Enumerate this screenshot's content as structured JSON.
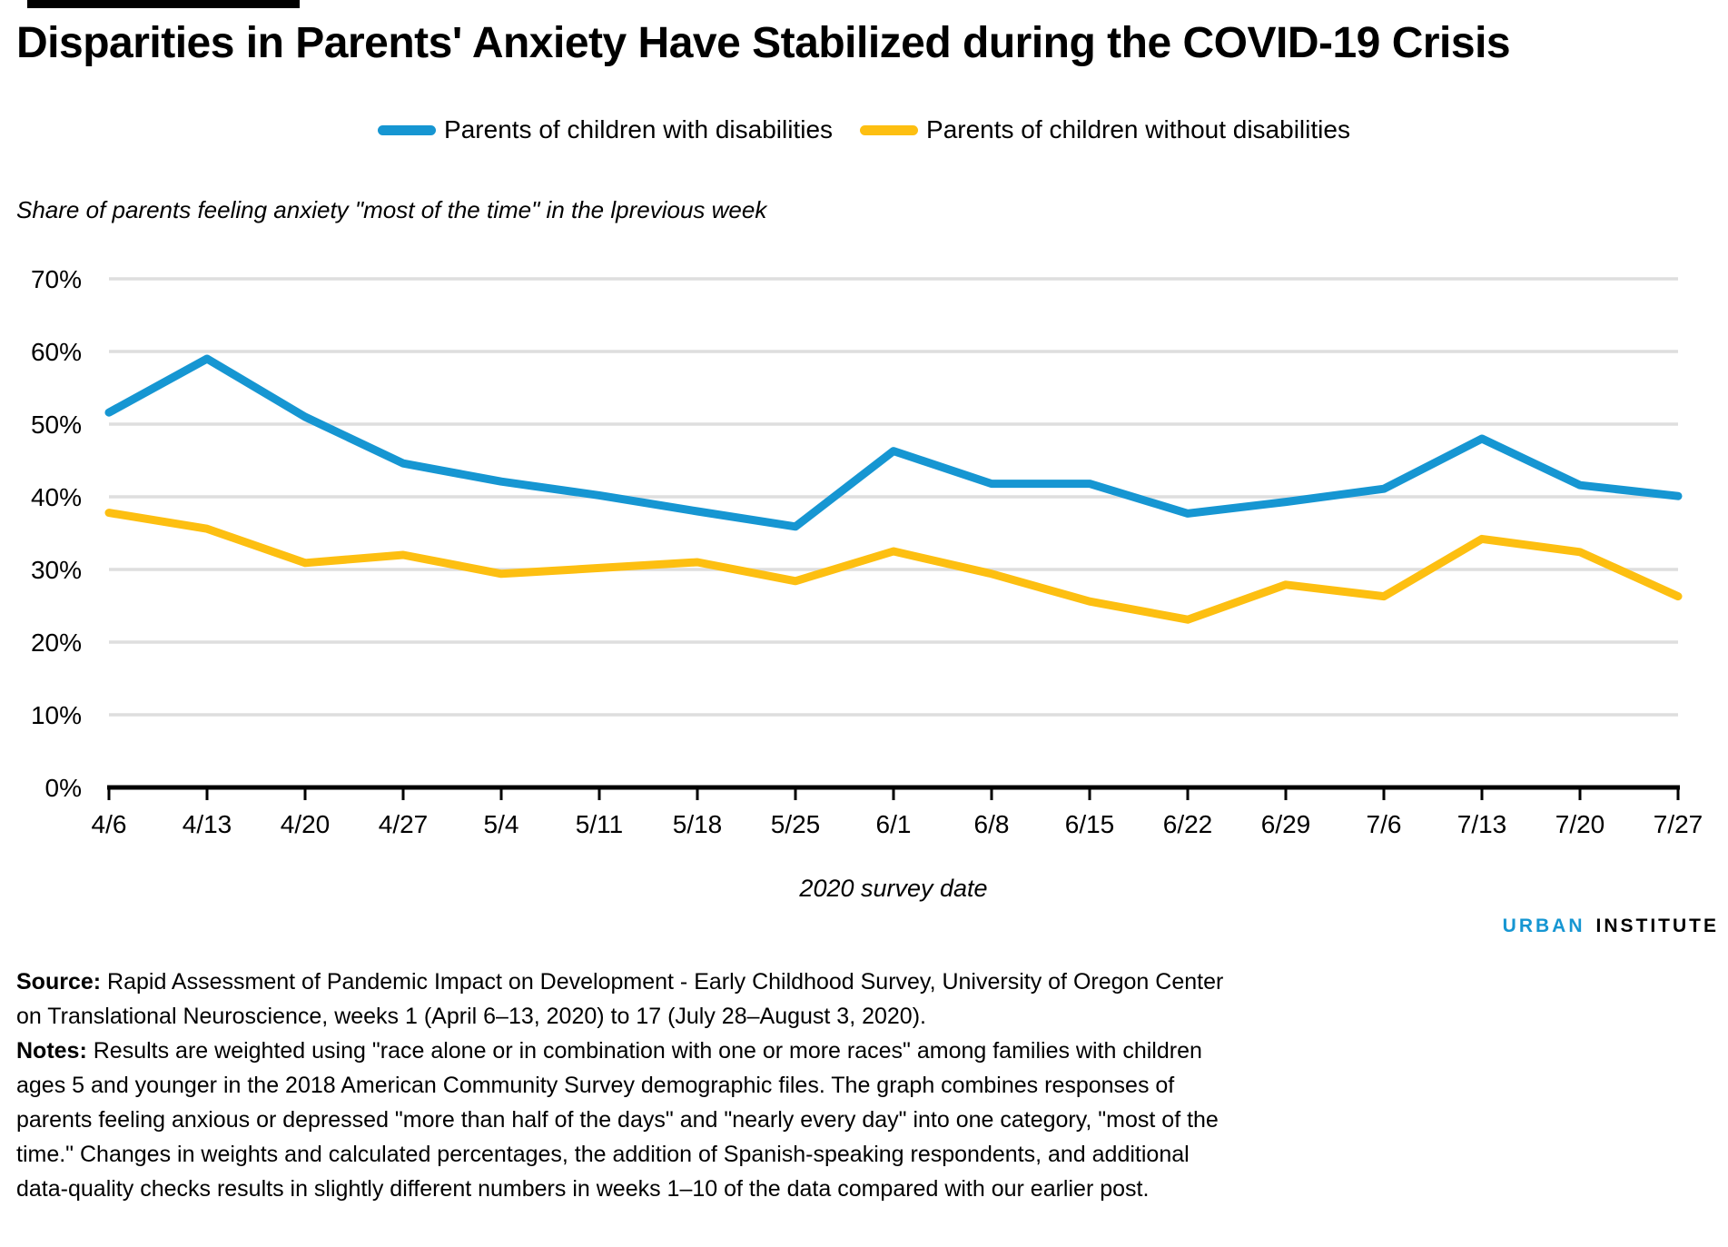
{
  "header": {
    "title": "Disparities in Parents' Anxiety Have Stabilized during the COVID-19 Crisis"
  },
  "chart_data": {
    "type": "line",
    "title": "Disparities in Parents' Anxiety Have Stabilized during the COVID-19 Crisis",
    "subtitle": "Share of parents feeling anxiety \"most of the time\" in the lprevious week",
    "categories": [
      "4/6",
      "4/13",
      "4/20",
      "4/27",
      "5/4",
      "5/11",
      "5/18",
      "5/25",
      "6/1",
      "6/8",
      "6/15",
      "6/22",
      "6/29",
      "7/6",
      "7/13",
      "7/20",
      "7/27"
    ],
    "series": [
      {
        "name": "Parents of children with disabilities",
        "color": "#1696d2",
        "values": [
          51.6,
          59.0,
          51.0,
          44.6,
          42.1,
          40.2,
          38.0,
          35.9,
          46.3,
          41.8,
          41.8,
          37.7,
          39.3,
          41.1,
          48.0,
          41.6,
          40.1
        ]
      },
      {
        "name": "Parents of children without disabilities",
        "color": "#fdbf11",
        "values": [
          37.8,
          35.6,
          30.9,
          32.0,
          29.4,
          30.2,
          31.0,
          28.4,
          32.5,
          29.4,
          25.6,
          23.1,
          27.9,
          26.3,
          34.2,
          32.4,
          26.3
        ]
      }
    ],
    "xlabel": "2020 survey date",
    "ylabel": "",
    "ylim": [
      0,
      70
    ],
    "ytick_step": 10,
    "y_tick_labels": [
      "0%",
      "10%",
      "20%",
      "30%",
      "40%",
      "50%",
      "60%",
      "70%"
    ],
    "grid": true,
    "grid_color": "#dedede",
    "legend_position": "top"
  },
  "footer": {
    "logo_urban": "URBAN",
    "logo_institute": "INSTITUTE",
    "source_label": "Source:",
    "source_text": "Rapid Assessment of Pandemic Impact on Development - Early Childhood Survey, University of Oregon Center on Translational Neuroscience, weeks 1 (April 6–13, 2020) to 17 (July 28–August 3, 2020).",
    "notes_label": "Notes:",
    "notes_text": "Results are weighted using \"race alone or in combination with one or more races\" among families with children ages 5 and younger in the 2018 American Community Survey demographic files. The graph combines responses of parents feeling anxious or depressed \"more than half of the days\" and \"nearly every day\" into one category, \"most of the time.\" Changes in weights and calculated percentages, the addition of Spanish-speaking respondents, and additional data-quality checks results in slightly different numbers in weeks 1–10 of the data compared with our earlier post."
  }
}
